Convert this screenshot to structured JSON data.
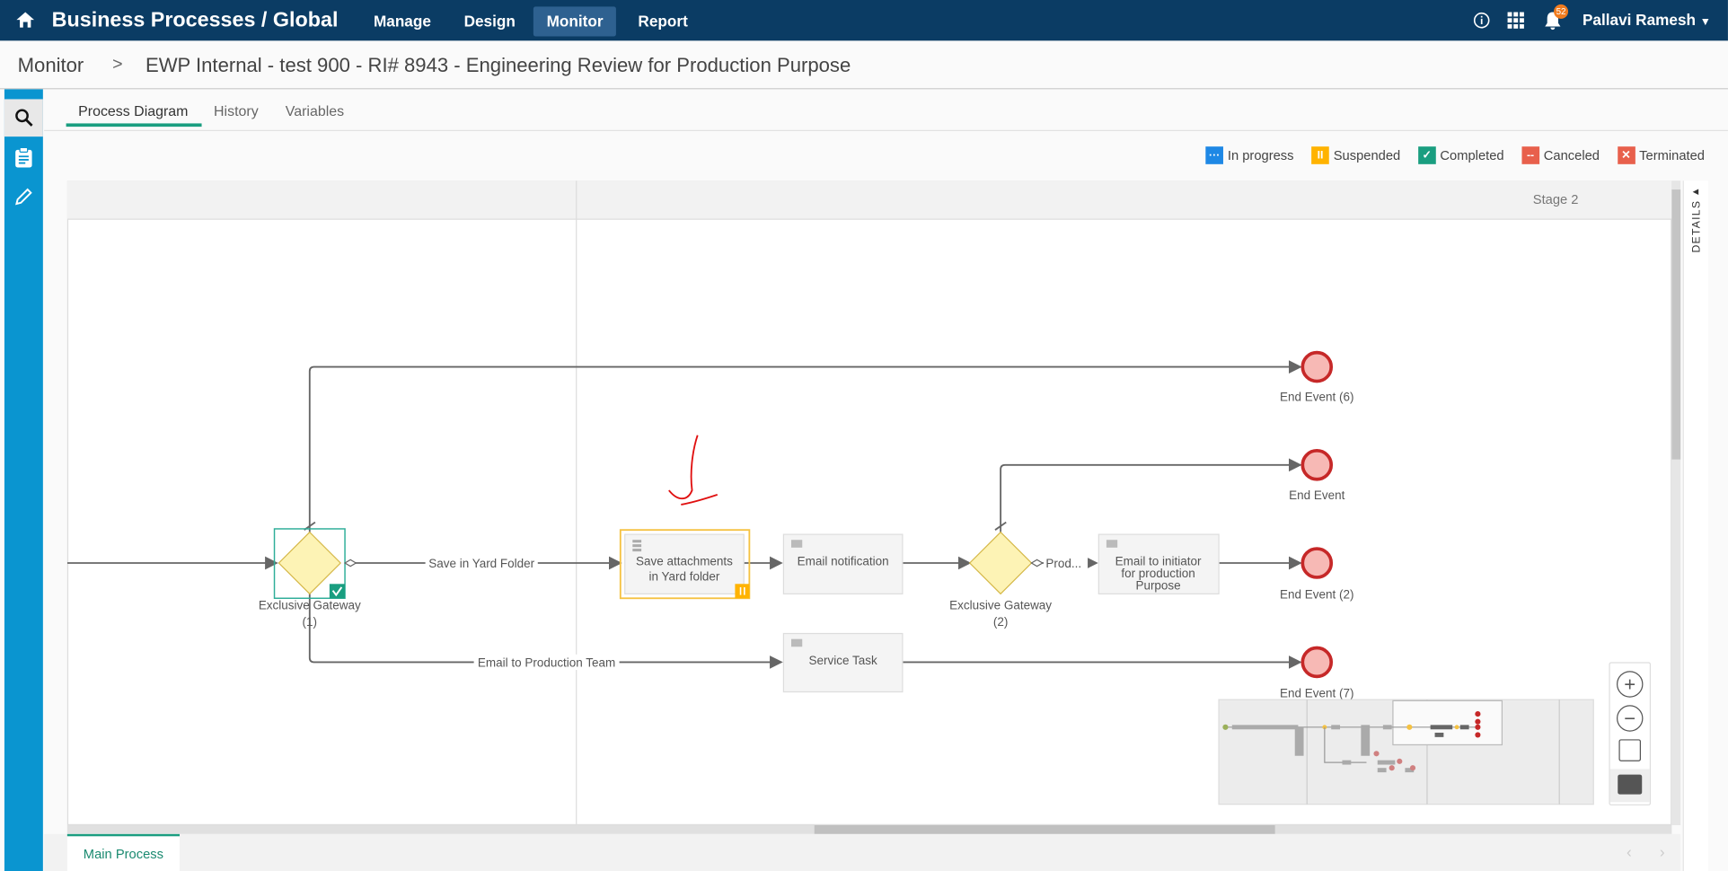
{
  "header": {
    "title": "Business Processes / Global",
    "nav": [
      "Manage",
      "Design",
      "Monitor",
      "Report"
    ],
    "active_nav": "Monitor",
    "notification_count": "52",
    "user": "Pallavi Ramesh"
  },
  "breadcrumb": {
    "root": "Monitor",
    "separator": ">",
    "current": "EWP Internal - test 900 - RI# 8943 - Engineering Review for Production Purpose"
  },
  "tabs": [
    "Process Diagram",
    "History",
    "Variables"
  ],
  "legend": [
    {
      "label": "In progress",
      "color": "#1e88e5",
      "symbol": "···"
    },
    {
      "label": "Suspended",
      "color": "#ffb300",
      "symbol": "II"
    },
    {
      "label": "Completed",
      "color": "#1a9e80",
      "symbol": "✓"
    },
    {
      "label": "Canceled",
      "color": "#e8604c",
      "symbol": "--"
    },
    {
      "label": "Terminated",
      "color": "#e8604c",
      "symbol": "✕"
    }
  ],
  "diagram": {
    "stage_label": "Stage 2",
    "details_label": "DETAILS",
    "gateway1": [
      "Exclusive Gateway",
      "(1)"
    ],
    "gateway2": [
      "Exclusive Gateway",
      "(2)"
    ],
    "flows": {
      "save_yard": "Save in Yard Folder",
      "email_prod": "Email to Production Team",
      "prod": "Prod..."
    },
    "tasks": {
      "save_attachments": [
        "Save attachments",
        "in Yard folder"
      ],
      "email_notification": "Email notification",
      "service_task": "Service Task",
      "email_initiator": [
        "Email to initiator",
        "for production",
        "Purpose"
      ]
    },
    "end_events": {
      "e6": "End Event (6)",
      "e": "End Event",
      "e2": "End Event (2)",
      "e7": "End Event (7)"
    },
    "status": {
      "gateway1": "completed",
      "save_attachments": "suspended"
    }
  },
  "bottom_tabs": [
    "Main Process"
  ]
}
